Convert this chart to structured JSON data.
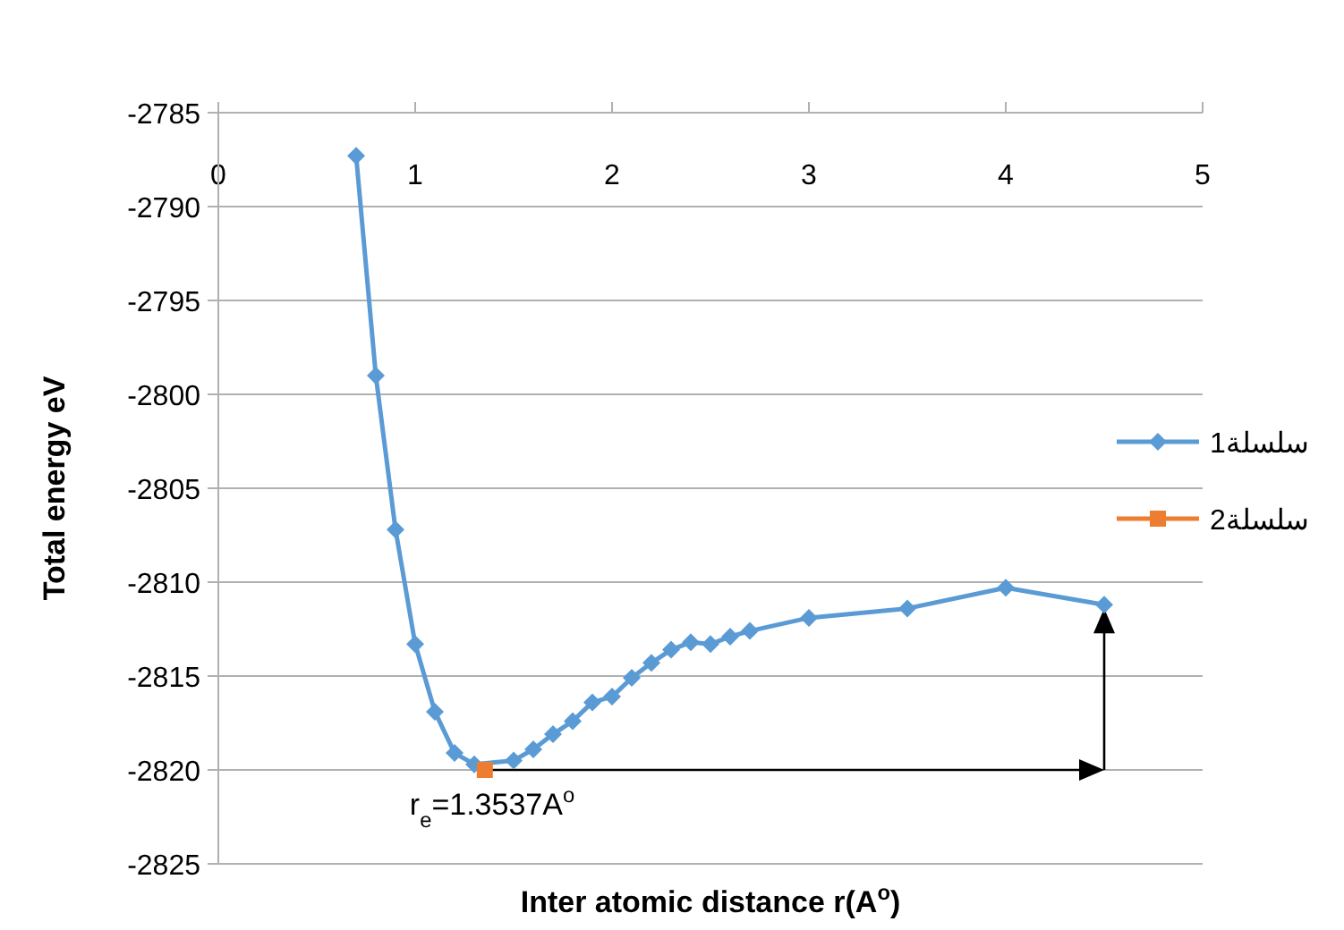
{
  "chart_data": {
    "type": "line",
    "xlabel": "Inter atomic distance r(A$^{o}$)",
    "ylabel": "Total energy eV",
    "xlim": [
      0,
      5
    ],
    "xticks": [
      0,
      1,
      2,
      3,
      4,
      5
    ],
    "ylim": [
      -2825,
      -2785
    ],
    "yticks": [
      -2825,
      -2820,
      -2815,
      -2810,
      -2805,
      -2800,
      -2795,
      -2790,
      -2785
    ],
    "grid": "y",
    "legend": "right",
    "series": [
      {
        "name": "سلسلة1",
        "color": "#5b9bd5",
        "marker": "diamond",
        "x": [
          0.7,
          0.8,
          0.9,
          1.0,
          1.1,
          1.2,
          1.3,
          1.5,
          1.6,
          1.7,
          1.8,
          1.9,
          2.0,
          2.1,
          2.2,
          2.3,
          2.4,
          2.5,
          2.6,
          2.7,
          3.0,
          3.5,
          4.0,
          4.5
        ],
        "values": [
          -2787.3,
          -2799.0,
          -2807.2,
          -2813.3,
          -2816.9,
          -2819.1,
          -2819.7,
          -2819.5,
          -2818.9,
          -2818.1,
          -2817.4,
          -2816.4,
          -2816.1,
          -2815.1,
          -2814.3,
          -2813.6,
          -2813.2,
          -2813.3,
          -2812.9,
          -2812.6,
          -2811.9,
          -2811.4,
          -2810.3,
          -2811.2
        ]
      },
      {
        "name": "سلسلة2",
        "color": "#ed7d31",
        "marker": "square",
        "x": [
          1.3537
        ],
        "values": [
          -2820.0
        ]
      }
    ],
    "annotations": [
      {
        "text": "r$_{e}$=1.3537A$^{o}$",
        "x": 1.3537,
        "y": -2820.0
      }
    ]
  }
}
